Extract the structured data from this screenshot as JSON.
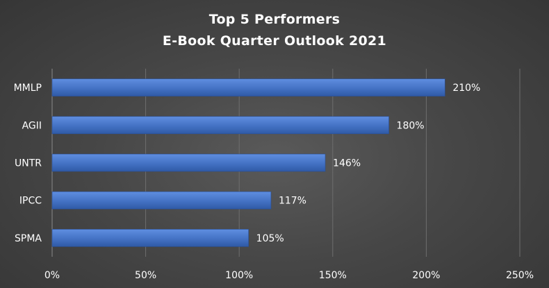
{
  "chart_data": {
    "type": "bar",
    "orientation": "horizontal",
    "title": "Top 5 Performers",
    "subtitle": "E-Book Quarter Outlook 2021",
    "categories": [
      "MMLP",
      "AGII",
      "UNTR",
      "IPCC",
      "SPMA"
    ],
    "values": [
      210,
      180,
      146,
      117,
      105
    ],
    "value_labels": [
      "210%",
      "180%",
      "146%",
      "117%",
      "105%"
    ],
    "xlim": [
      0,
      250
    ],
    "x_ticks": [
      0,
      50,
      100,
      150,
      200,
      250
    ],
    "x_tick_labels": [
      "0%",
      "50%",
      "100%",
      "150%",
      "200%",
      "250%"
    ],
    "xlabel": "",
    "ylabel": "",
    "grid": true,
    "legend": false,
    "colors": {
      "bar": "#4472C4",
      "bar_light": "#5f8ee0",
      "bar_dark": "#2f5aa6",
      "gridline": "#6e6e6e",
      "axis": "#8a8a8a",
      "text": "#ffffff"
    }
  }
}
